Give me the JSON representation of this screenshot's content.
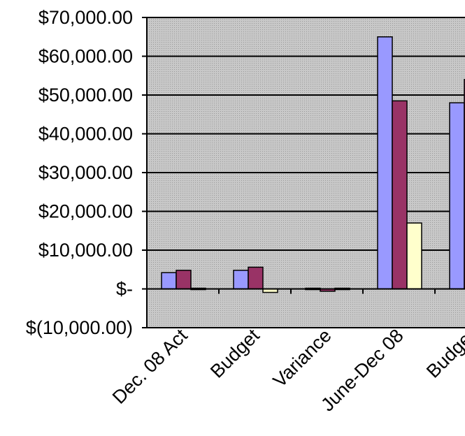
{
  "chart_data": {
    "type": "bar",
    "title": "",
    "xlabel": "",
    "ylabel": "",
    "categories": [
      "Dec. 08 Act",
      "Budget",
      "Variance",
      "June-Dec 08",
      "Budget"
    ],
    "series": [
      {
        "values": [
          4200,
          4800,
          -300,
          65000,
          48000
        ]
      },
      {
        "values": [
          4800,
          5600,
          -600,
          48500,
          54000
        ]
      },
      {
        "values": [
          0,
          -900,
          200,
          17000,
          null
        ]
      }
    ],
    "ylim": [
      -10000,
      70000
    ],
    "y_ticks": [
      {
        "value": 70000,
        "label": "$70,000.00"
      },
      {
        "value": 60000,
        "label": "$60,000.00"
      },
      {
        "value": 50000,
        "label": "$50,000.00"
      },
      {
        "value": 40000,
        "label": "$40,000.00"
      },
      {
        "value": 30000,
        "label": "$30,000.00"
      },
      {
        "value": 20000,
        "label": "$20,000.00"
      },
      {
        "value": 10000,
        "label": "$10,000.00"
      },
      {
        "value": 0,
        "label": "$-"
      },
      {
        "value": -10000,
        "label": "$(10,000.00)"
      }
    ],
    "grid": true,
    "colors": {
      "series": [
        "#9999ff",
        "#993366",
        "#ffffcc"
      ],
      "plot_background": "#c0c0c0",
      "gridline": "#000000",
      "bar_outline": "#000000"
    }
  }
}
